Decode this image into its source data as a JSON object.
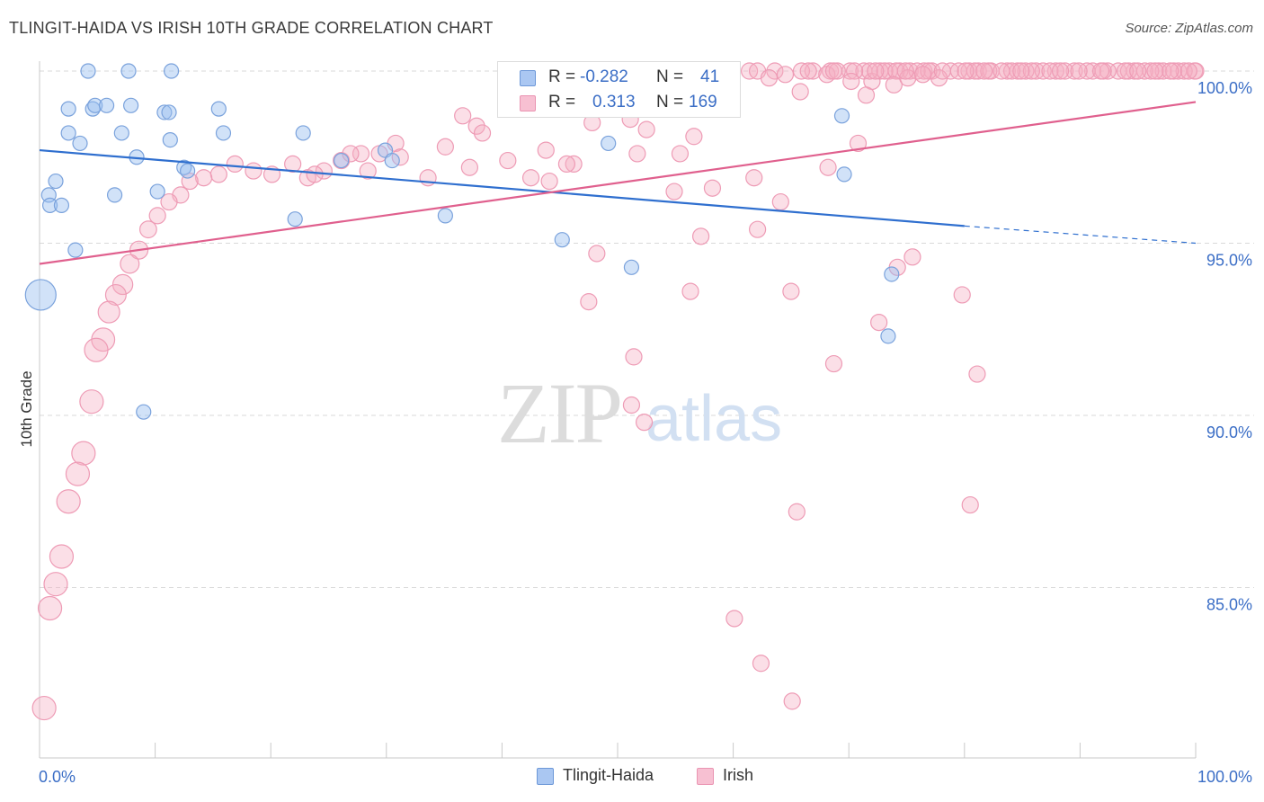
{
  "title": "TLINGIT-HAIDA VS IRISH 10TH GRADE CORRELATION CHART",
  "source": "Source: ZipAtlas.com",
  "watermark": {
    "zip": "ZIP",
    "atlas": "atlas"
  },
  "colors": {
    "blue_fill": "rgba(154,190,240,0.45)",
    "blue_stroke": "#7aa2dc",
    "blue_line": "#2f6fcf",
    "pink_fill": "rgba(246,176,196,0.4)",
    "pink_stroke": "#ee9bb5",
    "pink_line": "#e0608e",
    "tick_text": "#3b6ec6"
  },
  "stats": {
    "r_label": "R =",
    "n_label": "N =",
    "blue": {
      "r": "-0.282",
      "n": "41"
    },
    "pink": {
      "r": "0.313",
      "n": "169"
    }
  },
  "legend": {
    "blue": "Tlingit-Haida",
    "pink": "Irish"
  },
  "chart_data": {
    "type": "scatter",
    "title": "TLINGIT-HAIDA VS IRISH 10TH GRADE CORRELATION CHART",
    "xlabel": "",
    "ylabel": "10th Grade",
    "xlim": [
      0,
      100
    ],
    "ylim": [
      80.5,
      100.4
    ],
    "x_tick_labels": [
      "0.0%",
      "100.0%"
    ],
    "y_ticks": [
      100,
      95,
      90,
      85
    ],
    "y_tick_labels": [
      "100.0%",
      "95.0%",
      "90.0%",
      "85.0%"
    ],
    "grid": "horizontal dashed",
    "legend_position": "bottom",
    "series": [
      {
        "name": "Tlingit-Haida",
        "trend": {
          "x": [
            0,
            80,
            100
          ],
          "y": [
            97.7,
            95.5,
            95.0
          ],
          "solid_until": 80
        },
        "points": [
          [
            4.2,
            100
          ],
          [
            7.7,
            100
          ],
          [
            11.4,
            100
          ],
          [
            2.5,
            98.9
          ],
          [
            4.6,
            98.9
          ],
          [
            4.8,
            99.0
          ],
          [
            5.8,
            99.0
          ],
          [
            7.9,
            99.0
          ],
          [
            10.8,
            98.8
          ],
          [
            11.2,
            98.8
          ],
          [
            15.5,
            98.9
          ],
          [
            2.5,
            98.2
          ],
          [
            3.5,
            97.9
          ],
          [
            7.1,
            98.2
          ],
          [
            11.3,
            98.0
          ],
          [
            15.9,
            98.2
          ],
          [
            22.8,
            98.2
          ],
          [
            8.4,
            97.5
          ],
          [
            12.5,
            97.2
          ],
          [
            12.8,
            97.1
          ],
          [
            29.9,
            97.7
          ],
          [
            0.8,
            96.4
          ],
          [
            1.4,
            96.8
          ],
          [
            0.9,
            96.1
          ],
          [
            1.9,
            96.1
          ],
          [
            6.5,
            96.4
          ],
          [
            10.2,
            96.5
          ],
          [
            22.1,
            95.7
          ],
          [
            30.5,
            97.4
          ],
          [
            35.1,
            95.8
          ],
          [
            49.2,
            97.9
          ],
          [
            3.1,
            94.8
          ],
          [
            0.1,
            93.5,
            "L"
          ],
          [
            9.0,
            90.1
          ],
          [
            45.2,
            95.1
          ],
          [
            51.2,
            94.3
          ],
          [
            69.4,
            98.7
          ],
          [
            69.6,
            97.0
          ],
          [
            73.7,
            94.1
          ],
          [
            73.4,
            92.3
          ],
          [
            26.1,
            97.4
          ]
        ]
      },
      {
        "name": "Irish",
        "trend": {
          "x": [
            0,
            100
          ],
          "y": [
            94.4,
            99.1
          ]
        },
        "points": [
          [
            36.6,
            98.7
          ],
          [
            41.2,
            99.5
          ],
          [
            37.8,
            98.4
          ],
          [
            38.3,
            98.2
          ],
          [
            47.8,
            98.5
          ],
          [
            51.1,
            98.6
          ],
          [
            52.5,
            98.3
          ],
          [
            56.6,
            98.1
          ],
          [
            48.4,
            99.7
          ],
          [
            50.2,
            99.9
          ],
          [
            54.1,
            99.6
          ],
          [
            58.7,
            99.9
          ],
          [
            61.4,
            100
          ],
          [
            62.1,
            100
          ],
          [
            63.6,
            100
          ],
          [
            65.8,
            99.4
          ],
          [
            66.9,
            100
          ],
          [
            68.4,
            100
          ],
          [
            70.1,
            100
          ],
          [
            71.3,
            100
          ],
          [
            72.0,
            99.7
          ],
          [
            73.5,
            100
          ],
          [
            74.4,
            100
          ],
          [
            75.3,
            100
          ],
          [
            76.5,
            100
          ],
          [
            77.2,
            100
          ],
          [
            78.8,
            100
          ],
          [
            80.4,
            100
          ],
          [
            81.2,
            100
          ],
          [
            82.3,
            100
          ],
          [
            83.7,
            100
          ],
          [
            84.6,
            100
          ],
          [
            86.2,
            100
          ],
          [
            87.9,
            100
          ],
          [
            89.5,
            100
          ],
          [
            91.1,
            100
          ],
          [
            93.3,
            100
          ],
          [
            96.8,
            100
          ],
          [
            98.5,
            100
          ],
          [
            99.9,
            100
          ],
          [
            65.9,
            100
          ],
          [
            72.7,
            100
          ],
          [
            79.5,
            100
          ],
          [
            85.3,
            100
          ],
          [
            88.7,
            100
          ],
          [
            90.6,
            100
          ],
          [
            92.4,
            100
          ],
          [
            94.7,
            100
          ],
          [
            95.6,
            100
          ],
          [
            97.2,
            100
          ],
          [
            99.0,
            100
          ],
          [
            100,
            100
          ],
          [
            68.1,
            99.9
          ],
          [
            71.8,
            100
          ],
          [
            75.9,
            100
          ],
          [
            73.1,
            100
          ],
          [
            77.8,
            99.8
          ],
          [
            80.9,
            100
          ],
          [
            84.1,
            100
          ],
          [
            63.1,
            99.8
          ],
          [
            64.5,
            99.9
          ],
          [
            66.5,
            100
          ],
          [
            69.0,
            100
          ],
          [
            70.5,
            100
          ],
          [
            74.1,
            100
          ],
          [
            76.9,
            100
          ],
          [
            70.2,
            99.7
          ],
          [
            71.5,
            99.3
          ],
          [
            73.9,
            99.6
          ],
          [
            75.1,
            99.8
          ],
          [
            76.4,
            99.9
          ],
          [
            82.1,
            100
          ],
          [
            86.8,
            100
          ],
          [
            83.2,
            100
          ],
          [
            85.8,
            100
          ],
          [
            87.4,
            100
          ],
          [
            92.0,
            100
          ],
          [
            94.2,
            100
          ],
          [
            96.1,
            100
          ],
          [
            98.1,
            100
          ],
          [
            99.4,
            100
          ],
          [
            68.7,
            100
          ],
          [
            72.3,
            100
          ],
          [
            74.9,
            100
          ],
          [
            78.1,
            100
          ],
          [
            80.1,
            100
          ],
          [
            81.7,
            100
          ],
          [
            84.9,
            100
          ],
          [
            88.3,
            100
          ],
          [
            89.9,
            100
          ],
          [
            91.8,
            100
          ],
          [
            93.9,
            100
          ],
          [
            95.0,
            100
          ],
          [
            96.5,
            100
          ],
          [
            97.8,
            100
          ],
          [
            35.1,
            97.8
          ],
          [
            30.8,
            97.9
          ],
          [
            29.4,
            97.6
          ],
          [
            27.8,
            97.6
          ],
          [
            26.1,
            97.4
          ],
          [
            24.6,
            97.1
          ],
          [
            23.2,
            96.9
          ],
          [
            21.9,
            97.3
          ],
          [
            20.1,
            97.0
          ],
          [
            18.5,
            97.1
          ],
          [
            16.9,
            97.3
          ],
          [
            15.5,
            97.0
          ],
          [
            14.2,
            96.9
          ],
          [
            13.0,
            96.8
          ],
          [
            12.2,
            96.4
          ],
          [
            11.2,
            96.2
          ],
          [
            10.2,
            95.8
          ],
          [
            9.4,
            95.4
          ],
          [
            8.6,
            94.8
          ],
          [
            7.8,
            94.4
          ],
          [
            7.2,
            93.8
          ],
          [
            6.6,
            93.5
          ],
          [
            6.0,
            93.0
          ],
          [
            5.5,
            92.2
          ],
          [
            4.9,
            91.9
          ],
          [
            4.5,
            90.4
          ],
          [
            3.8,
            88.9
          ],
          [
            3.3,
            88.3
          ],
          [
            2.5,
            87.5
          ],
          [
            1.9,
            85.9
          ],
          [
            1.4,
            85.1
          ],
          [
            0.9,
            84.4
          ],
          [
            0.4,
            81.5
          ],
          [
            37.2,
            97.2
          ],
          [
            40.5,
            97.4
          ],
          [
            43.8,
            97.7
          ],
          [
            46.2,
            97.3
          ],
          [
            51.7,
            97.6
          ],
          [
            55.4,
            97.6
          ],
          [
            58.2,
            96.6
          ],
          [
            61.8,
            96.9
          ],
          [
            64.1,
            96.2
          ],
          [
            68.2,
            97.2
          ],
          [
            70.8,
            97.9
          ],
          [
            47.5,
            93.3
          ],
          [
            48.2,
            94.7
          ],
          [
            51.4,
            91.7
          ],
          [
            52.3,
            89.8
          ],
          [
            57.2,
            95.2
          ],
          [
            62.1,
            95.4
          ],
          [
            65.0,
            93.6
          ],
          [
            68.7,
            91.5
          ],
          [
            72.6,
            92.7
          ],
          [
            74.2,
            94.3
          ],
          [
            75.5,
            94.6
          ],
          [
            79.8,
            93.5
          ],
          [
            81.1,
            91.2
          ],
          [
            65.5,
            87.2
          ],
          [
            80.5,
            87.4
          ],
          [
            62.4,
            82.8
          ],
          [
            65.1,
            81.7
          ],
          [
            60.1,
            84.1
          ],
          [
            56.3,
            93.6
          ],
          [
            51.2,
            90.3
          ],
          [
            44.1,
            96.8
          ],
          [
            33.6,
            96.9
          ],
          [
            31.2,
            97.5
          ],
          [
            28.4,
            97.1
          ],
          [
            26.9,
            97.6
          ],
          [
            23.8,
            97.0
          ],
          [
            42.5,
            96.9
          ],
          [
            45.6,
            97.3
          ],
          [
            54.9,
            96.5
          ]
        ]
      }
    ]
  }
}
